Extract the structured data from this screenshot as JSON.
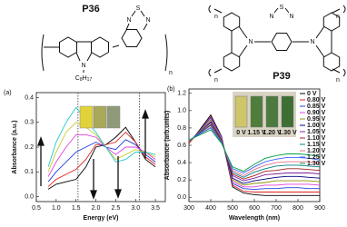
{
  "structures": [
    {
      "name": "P36",
      "atoms": [
        "N",
        "N",
        "S",
        "N"
      ],
      "substituent": [
        "C",
        "8",
        "H",
        "17"
      ],
      "repeat": "n"
    },
    {
      "name": "P39",
      "atoms": [
        "N",
        "N",
        "N",
        "S",
        "N"
      ],
      "repeat": "n"
    }
  ],
  "vial_labels": [
    "0 V",
    "1.15 V",
    "1.20 V",
    "1.30 V"
  ],
  "chart_data": [
    {
      "type": "line",
      "label": "(a)",
      "xlabel": "Energy (eV)",
      "ylabel": "Absorbance (a.u.)",
      "xlim": [
        0.5,
        3.75
      ],
      "ylim": [
        -0.02,
        0.42
      ],
      "xticks": [
        0.5,
        {
          "value": 1,
          "label": "1.0"
        },
        1.5,
        {
          "value": 2,
          "label": "2.0"
        },
        2.5,
        {
          "value": 3,
          "label": "3.0"
        },
        3.5
      ],
      "yticks": [
        {
          "value": 0,
          "label": "0.0"
        },
        0.1,
        0.2,
        0.3,
        0.4
      ],
      "reference_lines": [
        1.55,
        3.1
      ],
      "x": [
        0.8,
        1.0,
        1.25,
        1.5,
        1.75,
        2.0,
        2.25,
        2.5,
        2.75,
        3.0,
        3.25,
        3.5
      ],
      "series": [
        {
          "color": "#000000",
          "values": [
            0.03,
            0.05,
            0.06,
            0.07,
            0.12,
            0.2,
            0.21,
            0.24,
            0.28,
            0.22,
            0.15,
            0.12
          ]
        },
        {
          "color": "#e02020",
          "values": [
            0.04,
            0.07,
            0.09,
            0.11,
            0.15,
            0.21,
            0.21,
            0.22,
            0.26,
            0.22,
            0.16,
            0.13
          ]
        },
        {
          "color": "#2040e0",
          "values": [
            0.06,
            0.1,
            0.14,
            0.18,
            0.2,
            0.22,
            0.2,
            0.19,
            0.23,
            0.21,
            0.17,
            0.14
          ]
        },
        {
          "color": "#e040e0",
          "values": [
            0.08,
            0.14,
            0.2,
            0.25,
            0.25,
            0.24,
            0.2,
            0.17,
            0.2,
            0.2,
            0.18,
            0.15
          ]
        },
        {
          "color": "#c8c830",
          "values": [
            0.1,
            0.18,
            0.26,
            0.3,
            0.28,
            0.25,
            0.2,
            0.15,
            0.17,
            0.19,
            0.18,
            0.16
          ]
        },
        {
          "color": "#20c8c8",
          "values": [
            0.12,
            0.22,
            0.3,
            0.36,
            0.31,
            0.26,
            0.2,
            0.14,
            0.15,
            0.18,
            0.18,
            0.17
          ]
        }
      ]
    },
    {
      "type": "line",
      "label": "(b)",
      "xlabel": "Wavelength (nm)",
      "ylabel": "Absorbance (arb.units)",
      "xlim": [
        300,
        900
      ],
      "ylim": [
        -0.05,
        1.25
      ],
      "xticks": [
        300,
        400,
        500,
        600,
        700,
        800,
        900
      ],
      "yticks": [
        {
          "value": 0,
          "label": "0.0"
        },
        0.2,
        0.4,
        0.6,
        0.8,
        {
          "value": 1,
          "label": "1.0"
        },
        1.2
      ],
      "legend": "upper right",
      "x": [
        300,
        350,
        400,
        450,
        500,
        550,
        600,
        650,
        700,
        750,
        800,
        850,
        900
      ],
      "series": [
        {
          "name": "0 V",
          "color": "#000000",
          "values": [
            0.62,
            0.78,
            0.95,
            0.7,
            0.12,
            0.05,
            0.03,
            0.02,
            0.02,
            0.02,
            0.02,
            0.02,
            0.02
          ]
        },
        {
          "name": "0.80 V",
          "color": "#e02020",
          "values": [
            0.62,
            0.77,
            0.93,
            0.69,
            0.14,
            0.07,
            0.06,
            0.06,
            0.06,
            0.06,
            0.06,
            0.06,
            0.06
          ]
        },
        {
          "name": "0.85 V",
          "color": "#2040e0",
          "values": [
            0.63,
            0.77,
            0.92,
            0.69,
            0.16,
            0.1,
            0.09,
            0.1,
            0.1,
            0.11,
            0.11,
            0.1,
            0.1
          ]
        },
        {
          "name": "0.90 V",
          "color": "#e040e0",
          "values": [
            0.63,
            0.76,
            0.9,
            0.68,
            0.18,
            0.12,
            0.12,
            0.14,
            0.14,
            0.15,
            0.15,
            0.15,
            0.14
          ]
        },
        {
          "name": "0.95 V",
          "color": "#909000",
          "values": [
            0.63,
            0.76,
            0.89,
            0.67,
            0.2,
            0.14,
            0.16,
            0.17,
            0.19,
            0.19,
            0.19,
            0.19,
            0.18
          ]
        },
        {
          "name": "1.00 V",
          "color": "#000080",
          "values": [
            0.64,
            0.75,
            0.87,
            0.66,
            0.22,
            0.16,
            0.19,
            0.21,
            0.23,
            0.24,
            0.24,
            0.23,
            0.22
          ]
        },
        {
          "name": "1.05 V",
          "color": "#8020a0",
          "values": [
            0.64,
            0.75,
            0.86,
            0.66,
            0.25,
            0.19,
            0.22,
            0.26,
            0.27,
            0.28,
            0.28,
            0.28,
            0.27
          ]
        },
        {
          "name": "1.10 V",
          "color": "#a02020",
          "values": [
            0.65,
            0.74,
            0.84,
            0.65,
            0.27,
            0.21,
            0.25,
            0.3,
            0.31,
            0.33,
            0.33,
            0.32,
            0.31
          ]
        },
        {
          "name": "1.15 V",
          "color": "#008080",
          "values": [
            0.65,
            0.74,
            0.83,
            0.64,
            0.29,
            0.23,
            0.29,
            0.33,
            0.36,
            0.37,
            0.37,
            0.36,
            0.35
          ]
        },
        {
          "name": "1.20 V",
          "color": "#e07090",
          "values": [
            0.65,
            0.73,
            0.81,
            0.63,
            0.31,
            0.25,
            0.32,
            0.37,
            0.4,
            0.41,
            0.41,
            0.41,
            0.39
          ]
        },
        {
          "name": "1.25 V",
          "color": "#4060ff",
          "values": [
            0.66,
            0.73,
            0.8,
            0.63,
            0.33,
            0.28,
            0.35,
            0.41,
            0.44,
            0.46,
            0.46,
            0.45,
            0.43
          ]
        },
        {
          "name": "1.30 V",
          "color": "#00a040",
          "values": [
            0.66,
            0.72,
            0.78,
            0.62,
            0.35,
            0.3,
            0.38,
            0.45,
            0.48,
            0.5,
            0.5,
            0.49,
            0.47
          ]
        }
      ]
    }
  ]
}
